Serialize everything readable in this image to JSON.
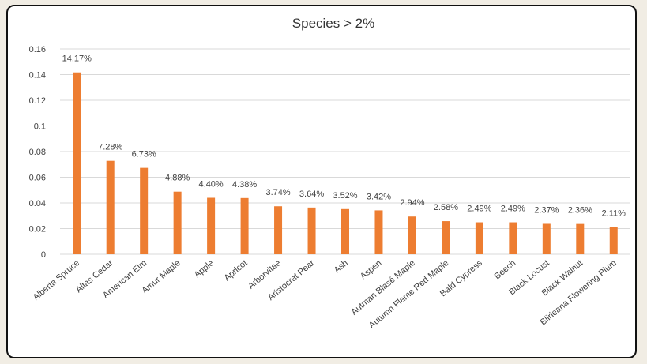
{
  "chart_data": {
    "type": "bar",
    "title": "Species > 2%",
    "xlabel": "",
    "ylabel": "",
    "ylim": [
      0,
      0.16
    ],
    "yticks": [
      0,
      0.02,
      0.04,
      0.06,
      0.08,
      0.1,
      0.12,
      0.14,
      0.16
    ],
    "ytick_labels": [
      "0",
      "0.02",
      "0.04",
      "0.06",
      "0.08",
      "0.1",
      "0.12",
      "0.14",
      "0.16"
    ],
    "grid": true,
    "legend": "none",
    "bar_color": "#ed7d31",
    "categories": [
      "Alberta Spruce",
      "Altas Cedar",
      "American Elm",
      "Amur Maple",
      "Apple",
      "Apricot",
      "Arborvitae",
      "Aristocrat Pear",
      "Ash",
      "Aspen",
      "Autman Blasé Maple",
      "Autumn Flame Red Maple",
      "Bald Cypress",
      "Beech",
      "Black Locust",
      "Black Walnut",
      "Blirieana Flowering Plum"
    ],
    "values": [
      0.1417,
      0.0728,
      0.0673,
      0.0488,
      0.044,
      0.0438,
      0.0374,
      0.0364,
      0.0352,
      0.0342,
      0.0294,
      0.0258,
      0.0249,
      0.0249,
      0.0237,
      0.0236,
      0.0211
    ],
    "data_labels": [
      "14.17%",
      "7.28%",
      "6.73%",
      "4.88%",
      "4.40%",
      "4.38%",
      "3.74%",
      "3.64%",
      "3.52%",
      "3.42%",
      "2.94%",
      "2.58%",
      "2.49%",
      "2.49%",
      "2.37%",
      "2.36%",
      "2.11%"
    ]
  }
}
